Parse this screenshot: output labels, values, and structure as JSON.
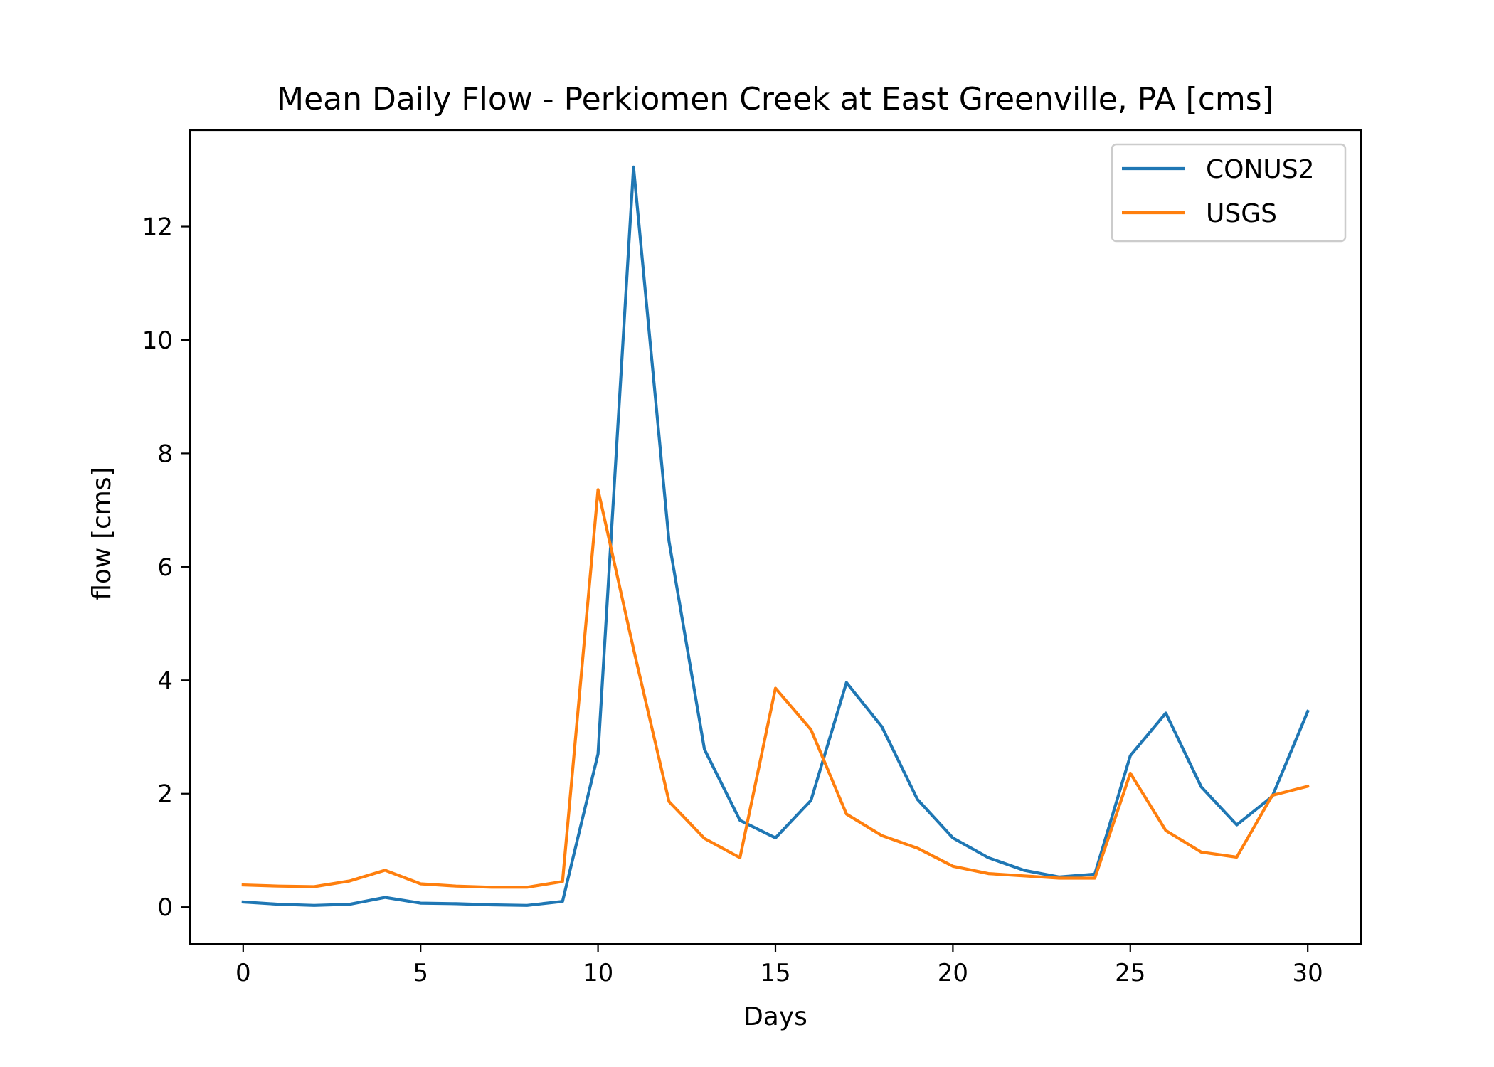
{
  "chart_data": {
    "type": "line",
    "title": "Mean Daily Flow - Perkiomen Creek at East Greenville, PA [cms]",
    "xlabel": "Days",
    "ylabel": "flow [cms]",
    "xlim": [
      -1.5,
      31.5
    ],
    "ylim": [
      -0.65,
      13.7
    ],
    "xticks": [
      0,
      5,
      10,
      15,
      20,
      25,
      30
    ],
    "yticks": [
      0,
      2,
      4,
      6,
      8,
      10,
      12
    ],
    "grid": false,
    "legend_position": "upper right",
    "x": [
      0,
      1,
      2,
      3,
      4,
      5,
      6,
      7,
      8,
      9,
      10,
      11,
      12,
      13,
      14,
      15,
      16,
      17,
      18,
      19,
      20,
      21,
      22,
      23,
      24,
      25,
      26,
      27,
      28,
      29,
      30
    ],
    "series": [
      {
        "name": "CONUS2",
        "color": "#1f77b4",
        "values": [
          0.09,
          0.05,
          0.03,
          0.05,
          0.17,
          0.07,
          0.06,
          0.04,
          0.03,
          0.1,
          2.7,
          13.05,
          6.45,
          2.78,
          1.53,
          1.22,
          1.88,
          3.96,
          3.18,
          1.9,
          1.22,
          0.87,
          0.65,
          0.53,
          0.58,
          2.67,
          3.42,
          2.12,
          1.45,
          1.95,
          3.45
        ]
      },
      {
        "name": "USGS",
        "color": "#ff7f0e",
        "values": [
          0.39,
          0.37,
          0.36,
          0.46,
          0.65,
          0.41,
          0.37,
          0.35,
          0.35,
          0.45,
          7.36,
          4.55,
          1.86,
          1.21,
          0.87,
          3.86,
          3.13,
          1.64,
          1.26,
          1.04,
          0.72,
          0.59,
          0.55,
          0.51,
          0.51,
          2.36,
          1.35,
          0.97,
          0.88,
          1.97,
          2.13
        ]
      }
    ]
  }
}
